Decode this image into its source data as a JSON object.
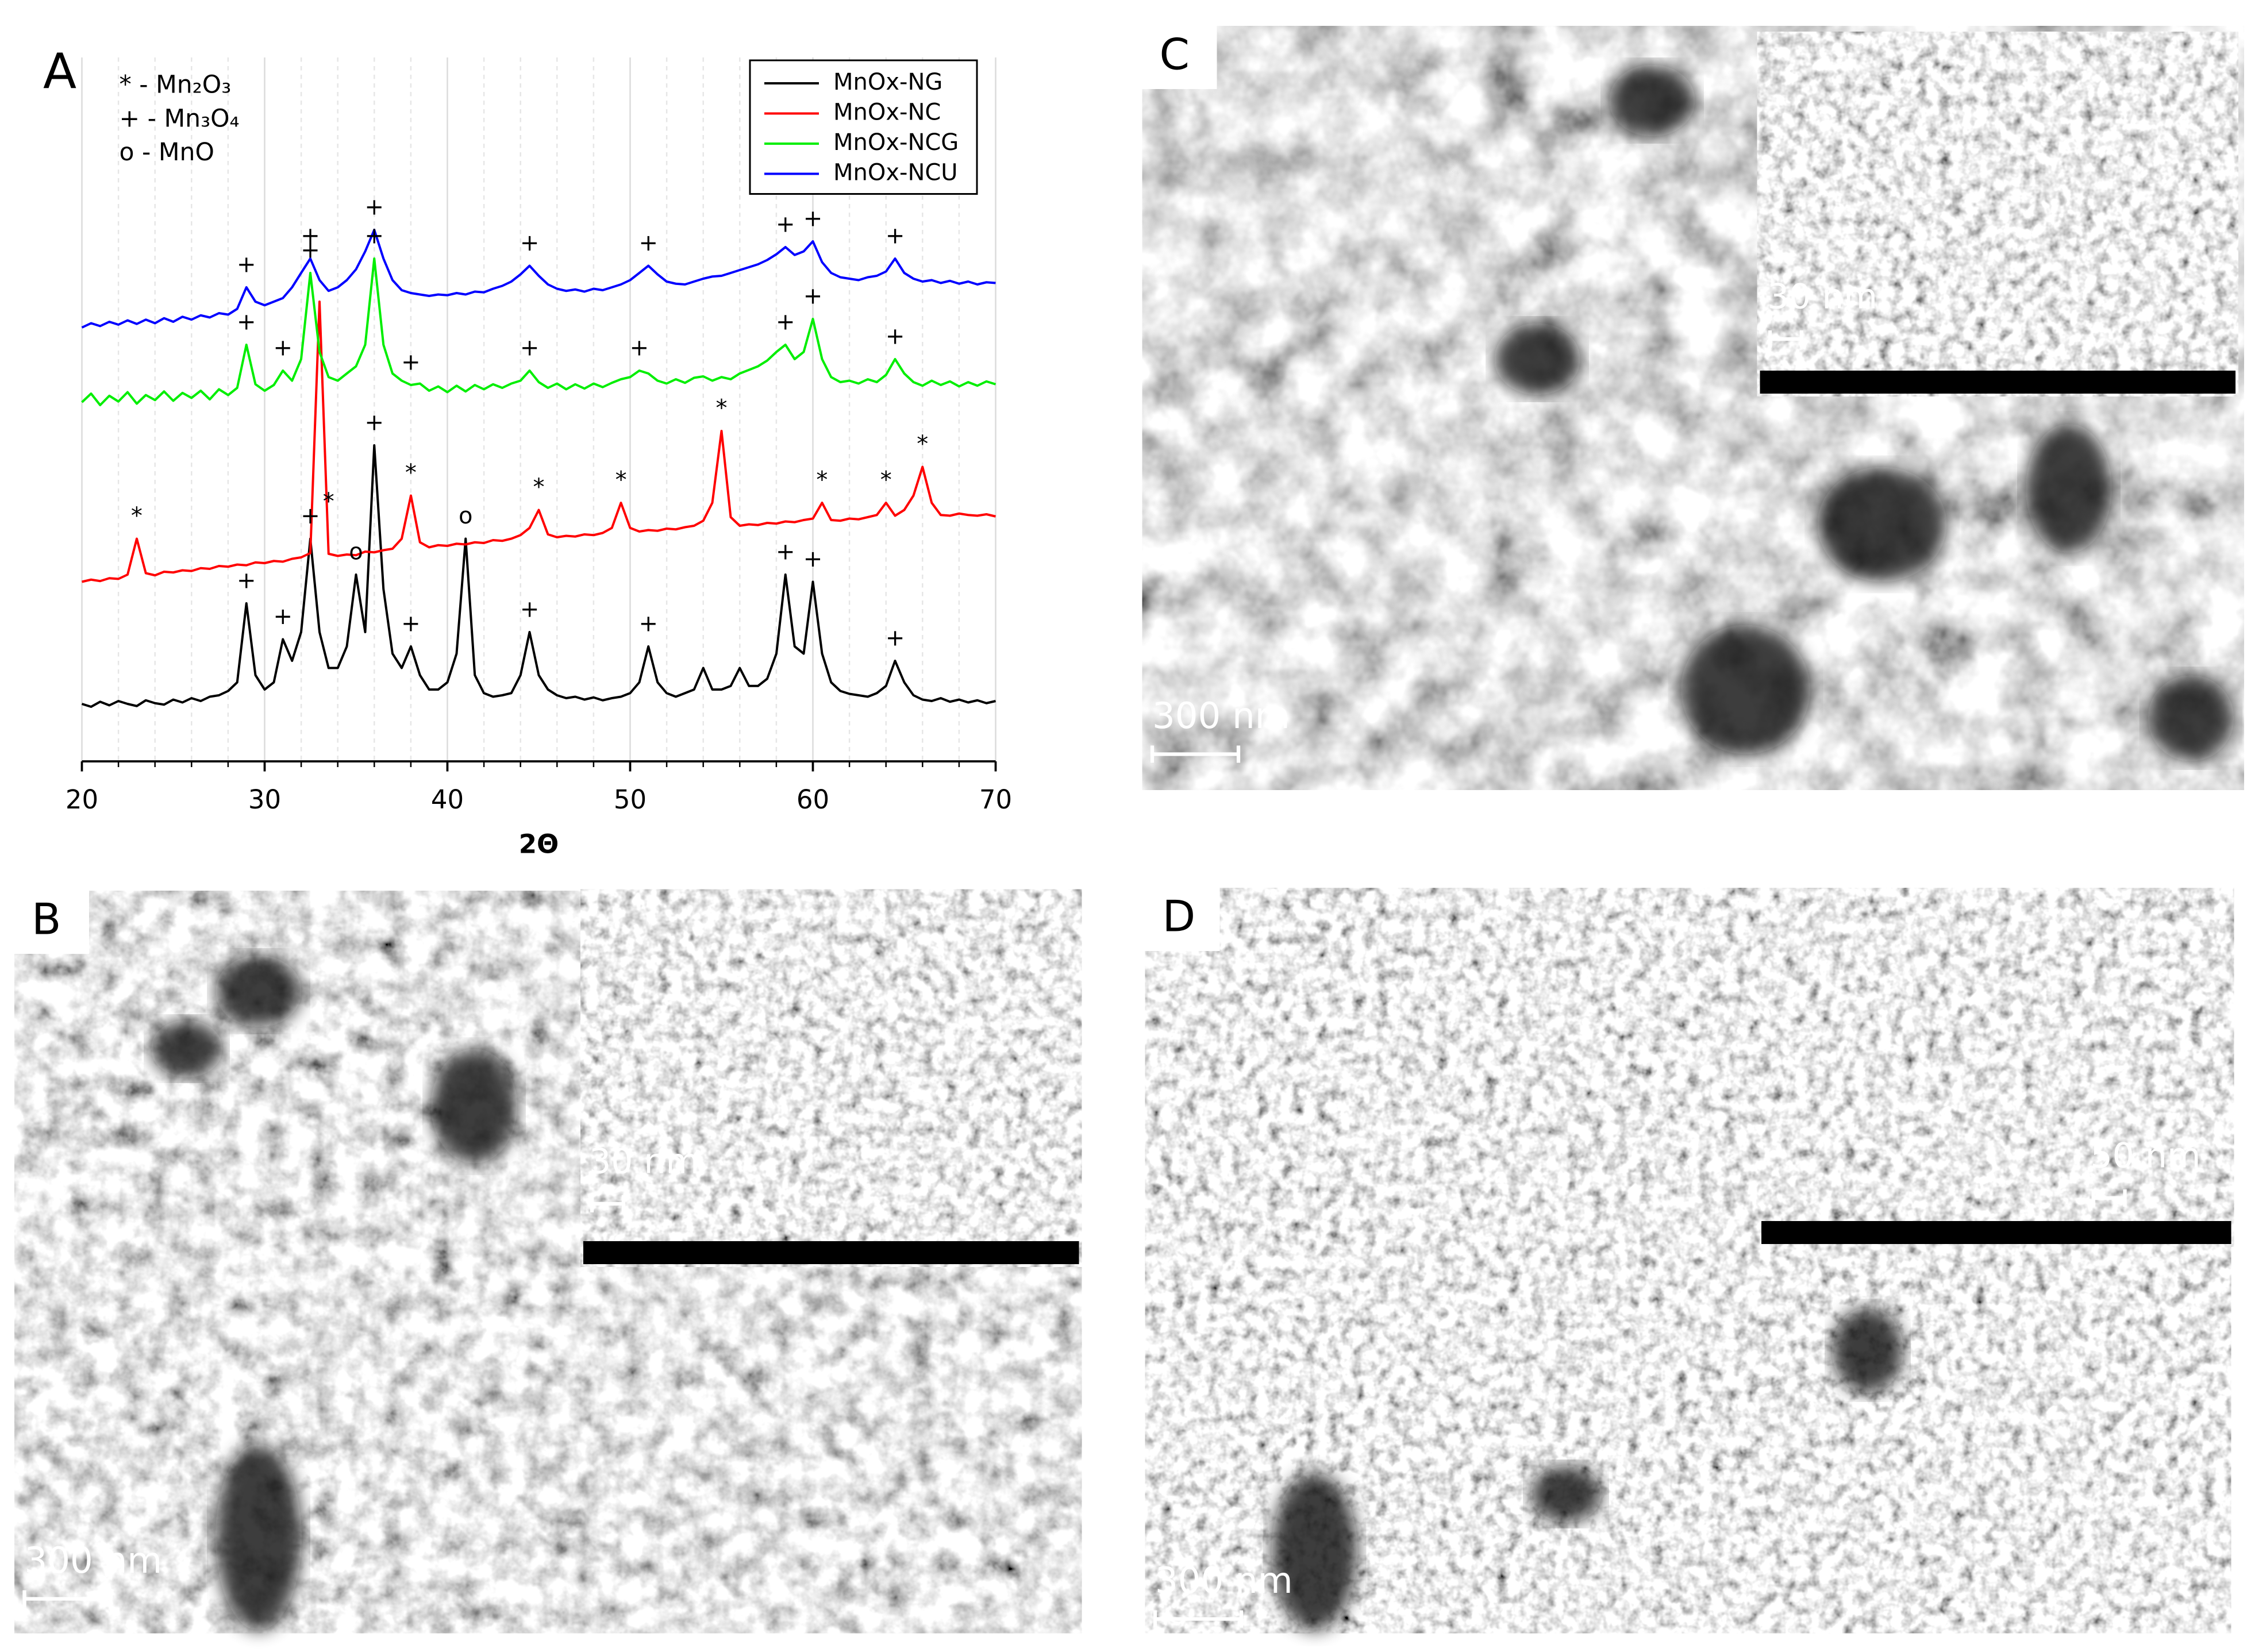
{
  "chart_data": {
    "type": "line",
    "panel": "A",
    "xlabel": "2Θ",
    "key": [
      "* - Mn₂O₃",
      "+ - Mn₃O₄",
      "o - MnO"
    ],
    "xlim": [
      20,
      70
    ],
    "xticks": [
      20,
      30,
      40,
      50,
      60,
      70
    ],
    "xminor": [
      22,
      24,
      26,
      28,
      32,
      34,
      36,
      38,
      42,
      44,
      46,
      48,
      52,
      54,
      56,
      58,
      62,
      64,
      66,
      68
    ],
    "ylim": [
      0,
      100
    ],
    "grid": true,
    "legend": "upper right",
    "x": [
      20,
      20.5,
      21,
      21.5,
      22,
      22.5,
      23,
      23.5,
      24,
      24.5,
      25,
      25.5,
      26,
      26.5,
      27,
      27.5,
      28,
      28.5,
      29,
      29.5,
      30,
      30.5,
      31,
      31.5,
      32,
      32.5,
      33,
      33.5,
      34,
      34.5,
      35,
      35.5,
      36,
      36.5,
      37,
      37.5,
      38,
      38.5,
      39,
      39.5,
      40,
      40.5,
      41,
      41.5,
      42,
      42.5,
      43,
      43.5,
      44,
      44.5,
      45,
      45.5,
      46,
      46.5,
      47,
      47.5,
      48,
      48.5,
      49,
      49.5,
      50,
      50.5,
      51,
      51.5,
      52,
      52.5,
      53,
      53.5,
      54,
      54.5,
      55,
      55.5,
      56,
      56.5,
      57,
      57.5,
      58,
      58.5,
      59,
      59.5,
      60,
      60.5,
      61,
      61.5,
      62,
      62.5,
      63,
      63.5,
      64,
      64.5,
      65,
      65.5,
      66,
      66.5,
      67,
      67.5,
      68,
      68.5,
      69,
      69.5,
      70
    ],
    "series": [
      {
        "name": "MnOx-NG",
        "color": "#000000",
        "values": [
          8,
          7.6,
          8.3,
          7.8,
          8.4,
          8.0,
          7.7,
          8.5,
          8.1,
          7.9,
          8.6,
          8.2,
          8.8,
          8.4,
          9.0,
          9.2,
          9.8,
          11,
          22,
          12,
          10,
          11,
          17,
          14,
          18,
          31,
          18,
          13,
          13,
          16,
          26,
          18,
          44,
          24,
          15,
          13,
          16,
          12,
          10,
          10,
          11,
          15,
          31,
          12,
          9.5,
          9,
          9.2,
          9.5,
          12,
          18,
          12,
          10,
          9.2,
          8.8,
          9,
          8.6,
          8.9,
          8.5,
          8.8,
          9,
          9.5,
          11,
          16,
          11,
          9.5,
          9,
          9.5,
          10,
          13,
          10,
          10,
          10.5,
          13,
          10.5,
          10.5,
          11.5,
          15,
          26,
          16,
          15,
          25,
          15,
          11,
          9.8,
          9.4,
          9.2,
          9,
          9.5,
          10.5,
          14,
          11,
          9.2,
          8.6,
          8.4,
          8.8,
          8.3,
          8.6,
          8.2,
          8.5,
          8.1,
          8.4
        ]
      },
      {
        "name": "MnOx-NC",
        "color": "#ff0000",
        "values": [
          25,
          25.3,
          25.1,
          25.5,
          25.4,
          26,
          31,
          26.2,
          25.9,
          26.4,
          26.3,
          26.6,
          26.5,
          26.9,
          26.8,
          27.2,
          27.1,
          27.4,
          27.3,
          27.7,
          27.6,
          27.9,
          27.8,
          28.2,
          28.4,
          29,
          64,
          28.9,
          28.6,
          28.8,
          28.7,
          29.2,
          29.1,
          29.4,
          29.6,
          31,
          37,
          30.5,
          29.8,
          30.1,
          30,
          30.3,
          30.2,
          30.5,
          30.4,
          30.8,
          30.7,
          31,
          31.5,
          32.5,
          35,
          31.6,
          31.2,
          31.4,
          31.3,
          31.6,
          31.5,
          31.8,
          32.5,
          36,
          32.5,
          32,
          32.2,
          32.1,
          32.4,
          32.3,
          32.6,
          32.8,
          33.5,
          36,
          46,
          34,
          32.8,
          33,
          32.9,
          33.2,
          33.1,
          33.4,
          33.3,
          33.6,
          33.8,
          36,
          33.6,
          33.5,
          33.8,
          33.7,
          34,
          34.3,
          36,
          34.2,
          35,
          37,
          41,
          36,
          34.3,
          34.2,
          34.5,
          34.3,
          34.2,
          34.4,
          34.1
        ]
      },
      {
        "name": "MnOx-NCG",
        "color": "#00ee00",
        "values": [
          50,
          51.2,
          49.6,
          50.9,
          50.1,
          51.4,
          49.8,
          51,
          50.3,
          51.5,
          50.2,
          51.3,
          50.6,
          51.6,
          50.4,
          51.8,
          51,
          52,
          58,
          52.5,
          51.6,
          52.4,
          54.4,
          53,
          56,
          68,
          57,
          53.5,
          53,
          54,
          55,
          58,
          70,
          58,
          54,
          53,
          52.4,
          52.6,
          51.6,
          52.2,
          51.4,
          52.3,
          51.5,
          52.4,
          51.8,
          52.5,
          52,
          52.6,
          53,
          54.4,
          52.8,
          52,
          52.6,
          51.8,
          52.5,
          51.9,
          52.6,
          52.1,
          52.7,
          53.2,
          53.5,
          54.4,
          54,
          53,
          52.6,
          53.2,
          52.7,
          53.4,
          53.6,
          53,
          53.5,
          53.2,
          54,
          54.5,
          55,
          55.8,
          57,
          58,
          56,
          57,
          61.6,
          56,
          53.5,
          52.8,
          53,
          52.6,
          53.2,
          52.8,
          53.8,
          56,
          54,
          52.8,
          52.3,
          53,
          52.4,
          52.9,
          52.2,
          52.8,
          52.3,
          52.9,
          52.5
        ]
      },
      {
        "name": "MnOx-NCU",
        "color": "#0000ff",
        "values": [
          60.4,
          61,
          60.6,
          61.2,
          60.8,
          61.4,
          60.9,
          61.5,
          61,
          61.7,
          61.2,
          61.9,
          61.5,
          62.1,
          61.8,
          62.4,
          62.2,
          63,
          66,
          64,
          63.5,
          64,
          64.5,
          66,
          68,
          70,
          67,
          65.5,
          66,
          67,
          68.5,
          71,
          74,
          70,
          67,
          65.6,
          65.2,
          65,
          64.8,
          65,
          64.9,
          65.2,
          65,
          65.4,
          65.3,
          65.8,
          66.2,
          66.8,
          67.8,
          69,
          67.6,
          66.4,
          65.8,
          65.5,
          65.7,
          65.4,
          65.8,
          65.6,
          66,
          66.4,
          67,
          68,
          69,
          67.8,
          66.8,
          66.5,
          66.4,
          66.8,
          67.2,
          67.5,
          67.6,
          68,
          68.4,
          68.8,
          69.2,
          69.8,
          70.6,
          71.6,
          70.5,
          71,
          72.4,
          69.5,
          68,
          67.4,
          67.2,
          67,
          67.4,
          67.6,
          68.2,
          70,
          68,
          67.2,
          66.8,
          67,
          66.6,
          66.9,
          66.5,
          66.8,
          66.4,
          66.7,
          66.6
        ]
      }
    ],
    "annotations": [
      {
        "x": 29,
        "y": 69,
        "label": "+"
      },
      {
        "x": 32.5,
        "y": 73,
        "label": "+"
      },
      {
        "x": 36,
        "y": 77,
        "label": "+"
      },
      {
        "x": 44.5,
        "y": 72,
        "label": "+"
      },
      {
        "x": 51,
        "y": 72,
        "label": "+"
      },
      {
        "x": 58.5,
        "y": 74.6,
        "label": "+"
      },
      {
        "x": 60,
        "y": 75.4,
        "label": "+"
      },
      {
        "x": 64.5,
        "y": 73,
        "label": "+"
      },
      {
        "x": 29,
        "y": 61,
        "label": "+"
      },
      {
        "x": 31,
        "y": 57.4,
        "label": "+"
      },
      {
        "x": 32.5,
        "y": 71,
        "label": "+"
      },
      {
        "x": 36,
        "y": 73,
        "label": "+"
      },
      {
        "x": 38,
        "y": 55.4,
        "label": "+"
      },
      {
        "x": 44.5,
        "y": 57.4,
        "label": "+"
      },
      {
        "x": 50.5,
        "y": 57.4,
        "label": "+"
      },
      {
        "x": 58.5,
        "y": 61,
        "label": "+"
      },
      {
        "x": 60,
        "y": 64.6,
        "label": "+"
      },
      {
        "x": 64.5,
        "y": 59,
        "label": "+"
      },
      {
        "x": 23,
        "y": 34,
        "label": "*"
      },
      {
        "x": 33.5,
        "y": 36,
        "label": "*"
      },
      {
        "x": 38,
        "y": 40,
        "label": "*"
      },
      {
        "x": 45,
        "y": 38,
        "label": "*"
      },
      {
        "x": 49.5,
        "y": 39,
        "label": "*"
      },
      {
        "x": 55,
        "y": 49,
        "label": "*"
      },
      {
        "x": 60.5,
        "y": 39,
        "label": "*"
      },
      {
        "x": 64,
        "y": 39,
        "label": "*"
      },
      {
        "x": 66,
        "y": 44,
        "label": "*"
      },
      {
        "x": 29,
        "y": 25,
        "label": "+"
      },
      {
        "x": 31,
        "y": 20,
        "label": "+"
      },
      {
        "x": 32.5,
        "y": 34,
        "label": "+"
      },
      {
        "x": 35,
        "y": 29,
        "label": "o"
      },
      {
        "x": 36,
        "y": 47,
        "label": "+"
      },
      {
        "x": 38,
        "y": 19,
        "label": "+"
      },
      {
        "x": 41,
        "y": 34,
        "label": "o"
      },
      {
        "x": 44.5,
        "y": 21,
        "label": "+"
      },
      {
        "x": 51,
        "y": 19,
        "label": "+"
      },
      {
        "x": 58.5,
        "y": 29,
        "label": "+"
      },
      {
        "x": 60,
        "y": 28,
        "label": "+"
      },
      {
        "x": 64.5,
        "y": 17,
        "label": "+"
      }
    ]
  },
  "panels": [
    {
      "label": "B",
      "scale": "300 nm",
      "inset_scale": "30 nm"
    },
    {
      "label": "C",
      "scale": "300 nm",
      "inset_scale": "30 nm"
    },
    {
      "label": "D",
      "scale": "300 nm",
      "inset_scale": "50 nm"
    }
  ]
}
